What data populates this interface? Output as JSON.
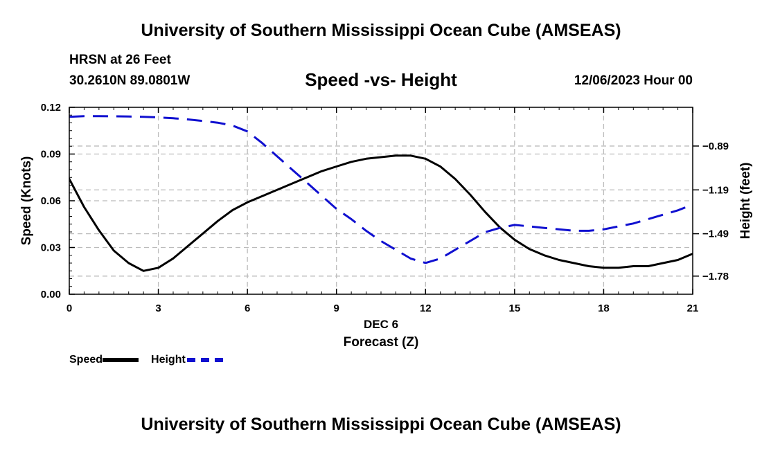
{
  "header": {
    "title": "University of Southern Mississippi Ocean Cube (AMSEAS)",
    "station": "HRSN at 26 Feet",
    "coords": "30.2610N  89.0801W",
    "chart_title": "Speed -vs- Height",
    "datetime": "12/06/2023 Hour 00"
  },
  "footer": {
    "title": "University of Southern Mississippi Ocean Cube (AMSEAS)"
  },
  "legend": {
    "speed_label": "Speed",
    "height_label": "Height"
  },
  "colors": {
    "speed": "#000000",
    "height": "#1010d0",
    "grid": "#bbbbbb"
  },
  "chart_data": {
    "type": "line",
    "title": "Speed -vs- Height",
    "xlabel": "Forecast (Z)",
    "xsublabel": "DEC 6",
    "ylabel": "Speed (Knots)",
    "y2label": "Height (feet)",
    "xlim": [
      0,
      21
    ],
    "ylim": [
      0,
      0.12
    ],
    "y2lim": [
      -1.904,
      -0.625
    ],
    "xticks": [
      0,
      3,
      6,
      9,
      12,
      15,
      18,
      21
    ],
    "yticks": [
      0,
      0.03,
      0.06,
      0.09,
      0.12
    ],
    "ytick_labels": [
      "0.00",
      "0.03",
      "0.06",
      "0.09",
      "0.12"
    ],
    "y2ticks": [
      -0.89,
      -1.19,
      -1.49,
      -1.78
    ],
    "y2tick_labels": [
      "−0.89",
      "−1.19",
      "−1.49",
      "−1.78"
    ],
    "grid": true,
    "series": [
      {
        "name": "Speed",
        "axis": "left",
        "style": "solid",
        "x": [
          0,
          0.5,
          1,
          1.5,
          2,
          2.5,
          3,
          3.5,
          4,
          4.5,
          5,
          5.5,
          6,
          6.5,
          7,
          7.5,
          8,
          8.5,
          9,
          9.5,
          10,
          10.5,
          11,
          11.5,
          12,
          12.5,
          13,
          13.5,
          14,
          14.5,
          15,
          15.5,
          16,
          16.5,
          17,
          17.5,
          18,
          18.5,
          19,
          19.5,
          20,
          20.5,
          21
        ],
        "values": [
          0.074,
          0.056,
          0.041,
          0.028,
          0.02,
          0.015,
          0.017,
          0.023,
          0.031,
          0.039,
          0.047,
          0.054,
          0.059,
          0.063,
          0.067,
          0.071,
          0.075,
          0.079,
          0.082,
          0.085,
          0.087,
          0.088,
          0.089,
          0.089,
          0.087,
          0.082,
          0.074,
          0.064,
          0.053,
          0.043,
          0.035,
          0.029,
          0.025,
          0.022,
          0.02,
          0.018,
          0.017,
          0.017,
          0.018,
          0.018,
          0.02,
          0.022,
          0.026
        ]
      },
      {
        "name": "Height",
        "axis": "right",
        "style": "dashed",
        "x": [
          0,
          0.5,
          1,
          1.5,
          2,
          2.5,
          3,
          3.5,
          4,
          4.5,
          5,
          5.5,
          6,
          6.5,
          7,
          7.5,
          8,
          8.5,
          9,
          9.5,
          10,
          10.5,
          11,
          11.5,
          12,
          12.5,
          13,
          13.5,
          14,
          14.5,
          15,
          15.5,
          16,
          16.5,
          17,
          17.5,
          18,
          18.5,
          19,
          19.5,
          20,
          20.5,
          21
        ],
        "values": [
          -0.69,
          -0.685,
          -0.685,
          -0.686,
          -0.688,
          -0.69,
          -0.694,
          -0.7,
          -0.708,
          -0.719,
          -0.73,
          -0.75,
          -0.79,
          -0.87,
          -0.96,
          -1.05,
          -1.14,
          -1.23,
          -1.32,
          -1.39,
          -1.47,
          -1.54,
          -1.6,
          -1.66,
          -1.69,
          -1.66,
          -1.6,
          -1.54,
          -1.48,
          -1.45,
          -1.43,
          -1.44,
          -1.45,
          -1.46,
          -1.47,
          -1.47,
          -1.46,
          -1.44,
          -1.42,
          -1.39,
          -1.36,
          -1.33,
          -1.29
        ]
      }
    ]
  }
}
